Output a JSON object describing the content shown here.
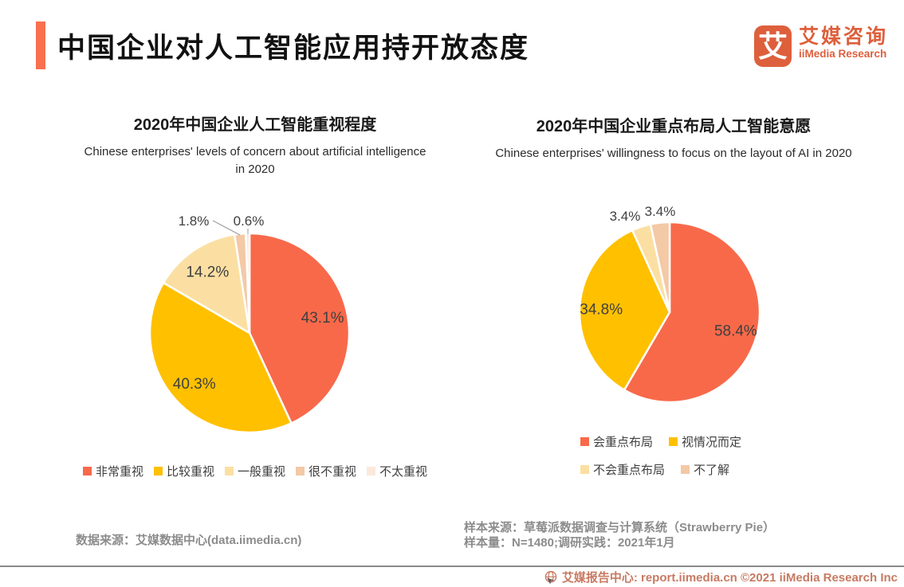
{
  "header": {
    "title": "中国企业对人工智能应用持开放态度",
    "accent_color": "#F8704E"
  },
  "logo": {
    "mark_char": "艾",
    "mark_icon": "iimedia-logo-icon",
    "name_cn": "艾媒咨询",
    "name_en": "iiMedia Research",
    "brand_color": "#DE5F3C"
  },
  "chart_data": [
    {
      "type": "pie",
      "title": "2020年中国企业人工智能重视程度",
      "subtitle_line1": "Chinese enterprises' levels of concern about artificial intelligence",
      "subtitle_line2": "in 2020",
      "start_angle": "12-oclock",
      "direction": "clockwise",
      "legend_position": "bottom",
      "value_format": "percent",
      "slices": [
        {
          "label": "非常重视",
          "value": 43.1,
          "color": "#F8694A"
        },
        {
          "label": "比较重视",
          "value": 40.3,
          "color": "#FFC000"
        },
        {
          "label": "一般重视",
          "value": 14.2,
          "color": "#FBDFA2"
        },
        {
          "label": "很不重视",
          "value": 1.8,
          "color": "#F3C9A6"
        },
        {
          "label": "不太重视",
          "value": 0.6,
          "color": "#FAE9DB"
        }
      ]
    },
    {
      "type": "pie",
      "title": "2020年中国企业重点布局人工智能意愿",
      "subtitle_line1": "Chinese enterprises' willingness to focus  on the layout of AI in 2020",
      "subtitle_line2": "",
      "start_angle": "12-oclock",
      "direction": "clockwise",
      "legend_position": "bottom",
      "value_format": "percent",
      "slices": [
        {
          "label": "会重点布局",
          "value": 58.4,
          "color": "#F8694A"
        },
        {
          "label": "视情况而定",
          "value": 34.8,
          "color": "#FFC000"
        },
        {
          "label": "不会重点布局",
          "value": 3.4,
          "color": "#FBDFA2"
        },
        {
          "label": "不了解",
          "value": 3.4,
          "color": "#F3C9A6"
        }
      ]
    }
  ],
  "sources": {
    "left": "数据来源：艾媒数据中心(data.iimedia.cn)",
    "right_line1": "样本来源：草莓派数据调查与计算系统（Strawberry Pie）",
    "right_line2": "样本量：N=1480;调研实践：2021年1月"
  },
  "footer": {
    "icon": "globe-cursor-icon",
    "text": "艾媒报告中心:  report.iimedia.cn ©2021  iiMedia Research Inc",
    "text_color": "#C77A62",
    "line_color": "#8a8a8a"
  }
}
